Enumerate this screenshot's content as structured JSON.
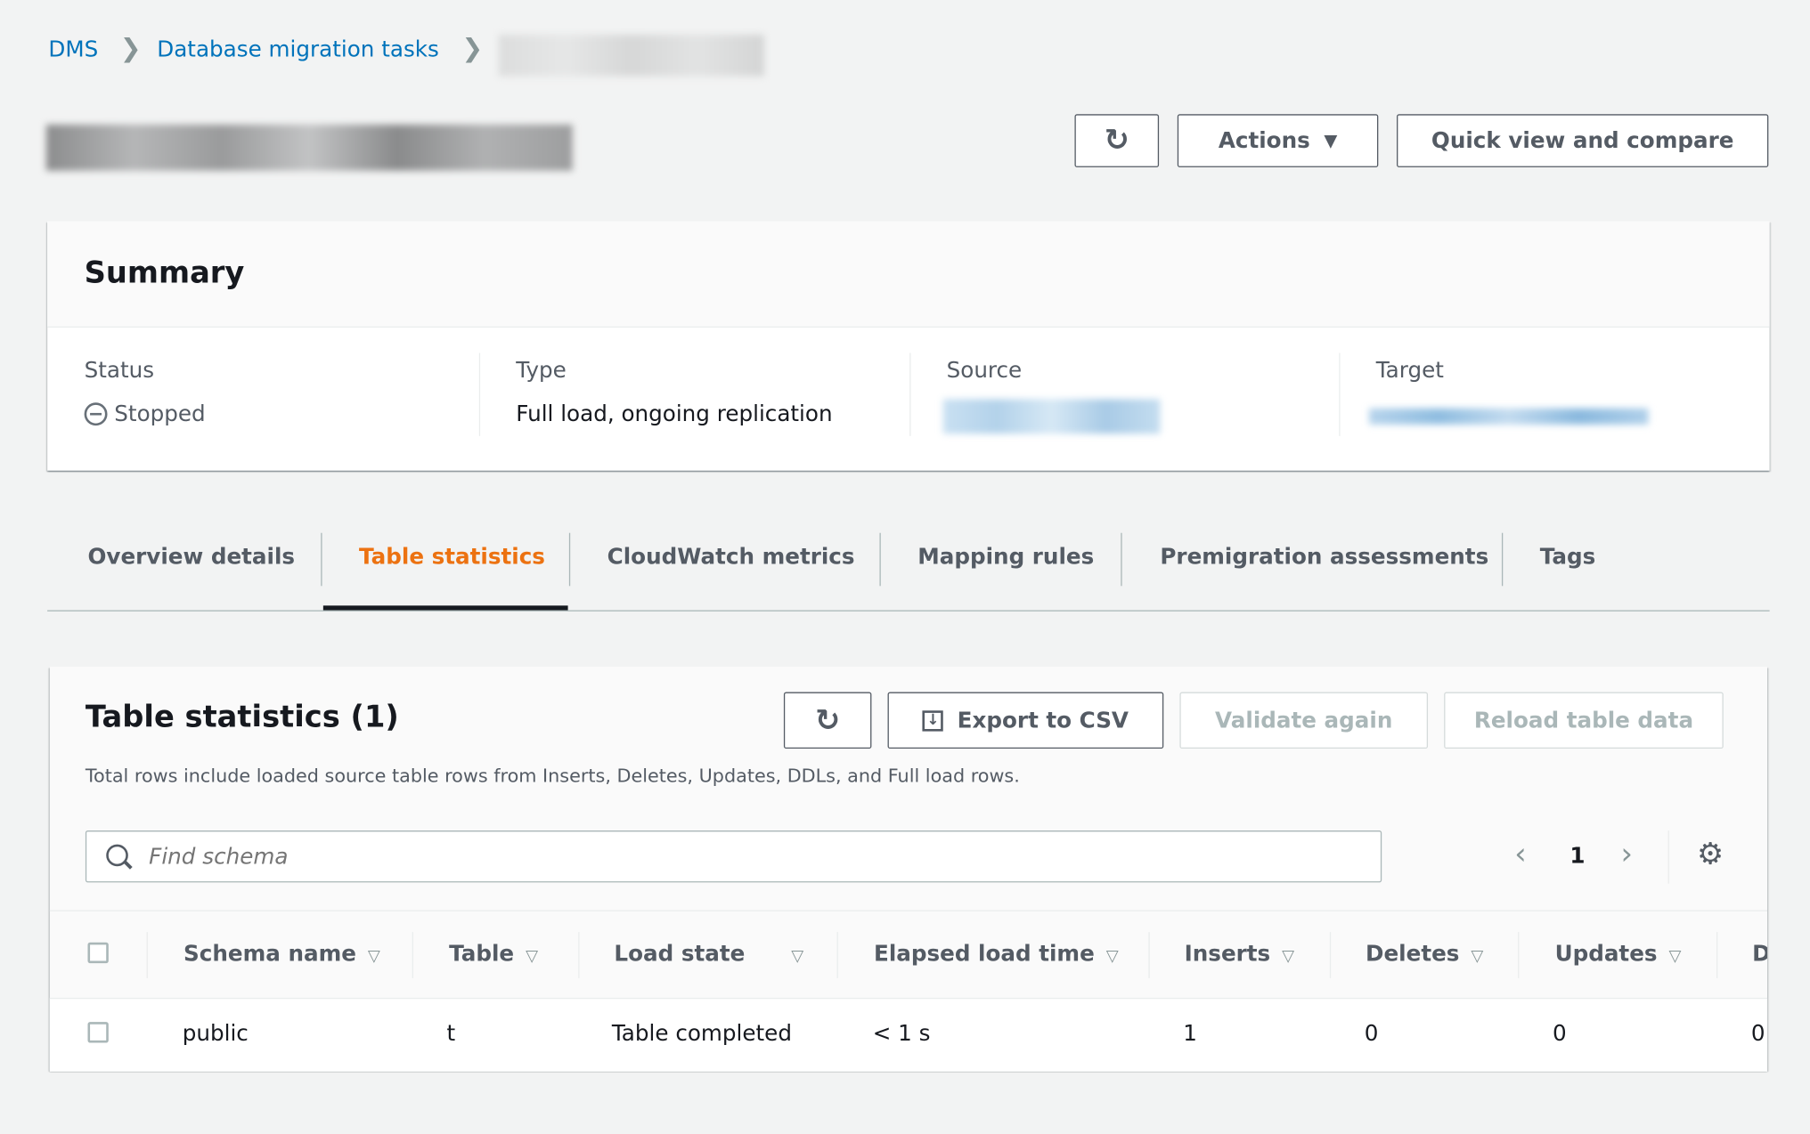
{
  "breadcrumb": {
    "items": [
      "DMS",
      "Database migration tasks"
    ]
  },
  "header": {
    "actions_label": "Actions",
    "quick_view_label": "Quick view and compare"
  },
  "summary": {
    "title": "Summary",
    "status_label": "Status",
    "status_value": "Stopped",
    "type_label": "Type",
    "type_value": "Full load, ongoing replication",
    "source_label": "Source",
    "target_label": "Target"
  },
  "tabs": [
    {
      "label": "Overview details",
      "active": false
    },
    {
      "label": "Table statistics",
      "active": true
    },
    {
      "label": "CloudWatch metrics",
      "active": false
    },
    {
      "label": "Mapping rules",
      "active": false
    },
    {
      "label": "Premigration assessments",
      "active": false
    },
    {
      "label": "Tags",
      "active": false
    }
  ],
  "accent_color": "#ec7211",
  "table_stats": {
    "title": "Table statistics (1)",
    "export_label": "Export to CSV",
    "validate_label": "Validate again",
    "reload_label": "Reload table data",
    "description": "Total rows include loaded source table rows from Inserts, Deletes, Updates, DDLs, and Full load rows.",
    "search_placeholder": "Find schema",
    "page": "1",
    "columns": [
      "Schema name",
      "Table",
      "Load state",
      "Elapsed load time",
      "Inserts",
      "Deletes",
      "Updates",
      "D"
    ],
    "rows": [
      [
        "public",
        "t",
        "Table completed",
        "< 1 s",
        "1",
        "0",
        "0",
        "0"
      ]
    ]
  }
}
